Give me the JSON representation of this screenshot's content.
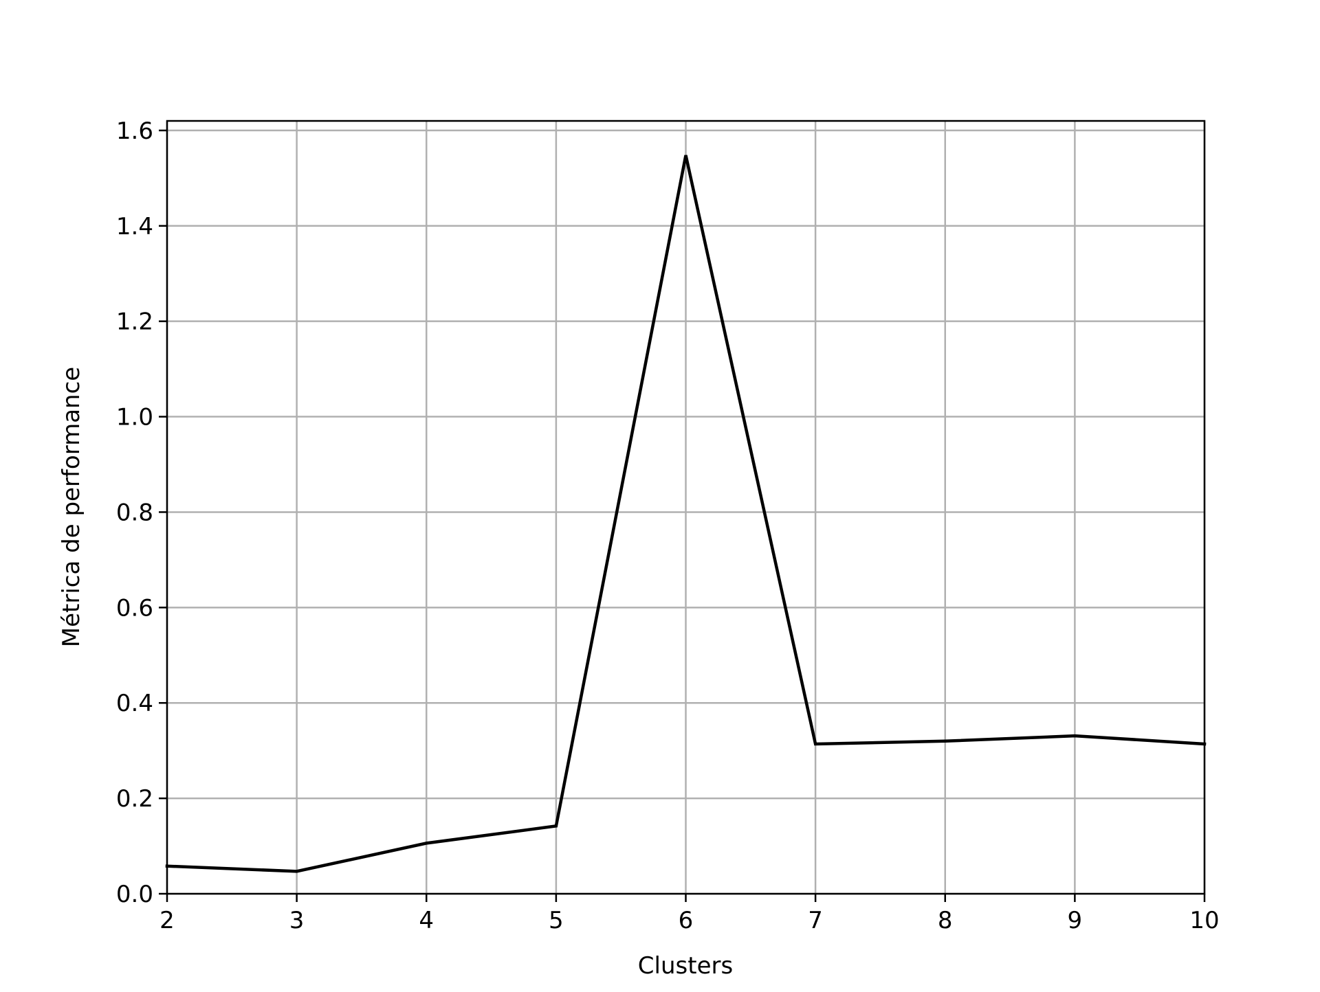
{
  "chart_data": {
    "type": "line",
    "title": "",
    "xlabel": "Clusters",
    "ylabel": "Métrica de performance",
    "x": [
      2,
      3,
      4,
      5,
      6,
      7,
      8,
      9,
      10
    ],
    "series": [
      {
        "values": [
          0.058,
          0.047,
          0.106,
          0.142,
          1.548,
          0.314,
          0.32,
          0.331,
          0.314
        ],
        "color": "#000000"
      }
    ],
    "xlim": [
      2,
      10
    ],
    "ylim": [
      0.0,
      1.62
    ],
    "xticks": [
      2,
      3,
      4,
      5,
      6,
      7,
      8,
      9,
      10
    ],
    "xtick_labels": [
      "2",
      "3",
      "4",
      "5",
      "6",
      "7",
      "8",
      "9",
      "10"
    ],
    "yticks": [
      0.0,
      0.2,
      0.4,
      0.6,
      0.8,
      1.0,
      1.2,
      1.4,
      1.6
    ],
    "ytick_labels": [
      "0.0",
      "0.2",
      "0.4",
      "0.6",
      "0.8",
      "1.0",
      "1.2",
      "1.4",
      "1.6"
    ],
    "grid": true,
    "grid_color": "#b0b0b0",
    "line_color": "#000000"
  }
}
